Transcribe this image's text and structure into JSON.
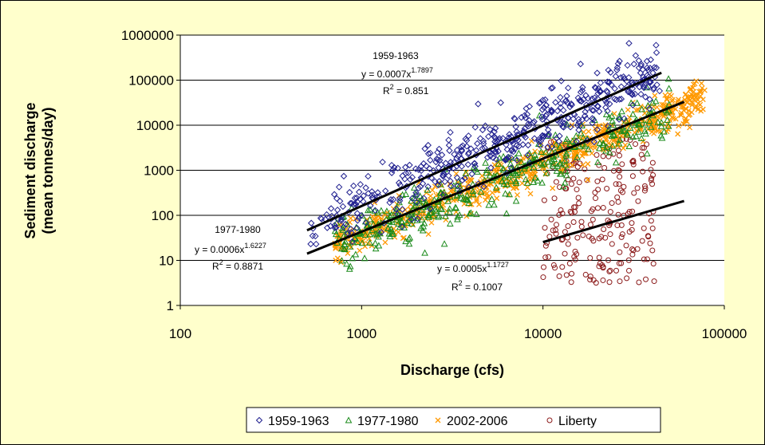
{
  "chart_data": {
    "type": "scatter",
    "x_scale": "log",
    "y_scale": "log",
    "xlabel": "Discharge (cfs)",
    "ylabel_lines": [
      "Sediment discharge",
      "(mean tonnes/day)"
    ],
    "xlim": [
      100,
      100000
    ],
    "ylim": [
      1,
      1000000
    ],
    "x_ticks": [
      100,
      1000,
      10000,
      100000
    ],
    "x_tick_labels": [
      "100",
      "1000",
      "10000",
      "100000"
    ],
    "y_ticks": [
      1,
      10,
      100,
      1000,
      10000,
      100000,
      1000000
    ],
    "y_tick_labels": [
      "1",
      "10",
      "100",
      "1000",
      "10000",
      "100000",
      "1000000"
    ],
    "grid": "horizontal major",
    "legend_position": "bottom",
    "series": [
      {
        "name": "1959-1963",
        "marker": "diamond",
        "color": "#1f1f8f",
        "n_points": 500,
        "x_range": [
          500,
          45000
        ],
        "points_sample": [
          [
            520,
            30
          ],
          [
            800,
            300
          ],
          [
            1500,
            3000
          ],
          [
            2500,
            8000
          ],
          [
            5000,
            15000
          ],
          [
            10000,
            40000
          ],
          [
            30000,
            100000
          ],
          [
            45000,
            150000
          ]
        ]
      },
      {
        "name": "1977-1980",
        "marker": "triangle",
        "color": "#1a8a1a",
        "n_points": 400,
        "x_range": [
          700,
          55000
        ],
        "points_sample": [
          [
            700,
            20
          ],
          [
            1500,
            300
          ],
          [
            3000,
            800
          ],
          [
            6000,
            3000
          ],
          [
            10000,
            8000
          ],
          [
            20000,
            20000
          ],
          [
            50000,
            80000
          ]
        ]
      },
      {
        "name": "2002-2006",
        "marker": "x",
        "color": "#ff9900",
        "n_points": 700,
        "x_range": [
          700,
          80000
        ],
        "points_sample": [
          [
            700,
            30
          ],
          [
            1500,
            200
          ],
          [
            3000,
            700
          ],
          [
            8000,
            2500
          ],
          [
            15000,
            8000
          ],
          [
            40000,
            20000
          ],
          [
            80000,
            40000
          ]
        ]
      },
      {
        "name": "Liberty",
        "marker": "circle",
        "color": "#8b1a1a",
        "n_points": 220,
        "x_range": [
          10000,
          40000
        ],
        "points_sample": [
          [
            10000,
            20
          ],
          [
            12000,
            3
          ],
          [
            15000,
            400
          ],
          [
            20000,
            60
          ],
          [
            25000,
            5000
          ],
          [
            30000,
            15
          ],
          [
            35000,
            700
          ]
        ]
      }
    ],
    "trendlines": [
      {
        "x": [
          500,
          45000
        ],
        "y": [
          46.6,
          145670
        ],
        "color": "#000000",
        "label": "1959-1963"
      },
      {
        "x": [
          500,
          60000
        ],
        "y": [
          14.1,
          33016
        ],
        "color": "#000000",
        "label": "1977-1980"
      },
      {
        "x": [
          10000,
          60000
        ],
        "y": [
          25.4,
          208.0
        ],
        "color": "#000000",
        "label": "Liberty"
      }
    ],
    "annotations": [
      {
        "id": "a1959",
        "title": "1959-1963",
        "eq_prefix": "y = 0.0007x",
        "eq_exp": "1.7897",
        "r2_prefix": "R",
        "r2_exp": "2",
        "r2_value": " = 0.851"
      },
      {
        "id": "a1977",
        "title": "1977-1980",
        "eq_prefix": "y = 0.0006x",
        "eq_exp": "1.6227",
        "r2_prefix": "R",
        "r2_exp": "2",
        "r2_value": " = 0.8871"
      },
      {
        "id": "aLib",
        "title": "",
        "eq_prefix": "y = 0.0005x",
        "eq_exp": "1.1727",
        "r2_prefix": "R",
        "r2_exp": "2",
        "r2_value": " = 0.1007"
      }
    ]
  },
  "colors": {
    "background": "#ffffcc",
    "plot_area": "#ffffff",
    "gridline": "#000000"
  }
}
